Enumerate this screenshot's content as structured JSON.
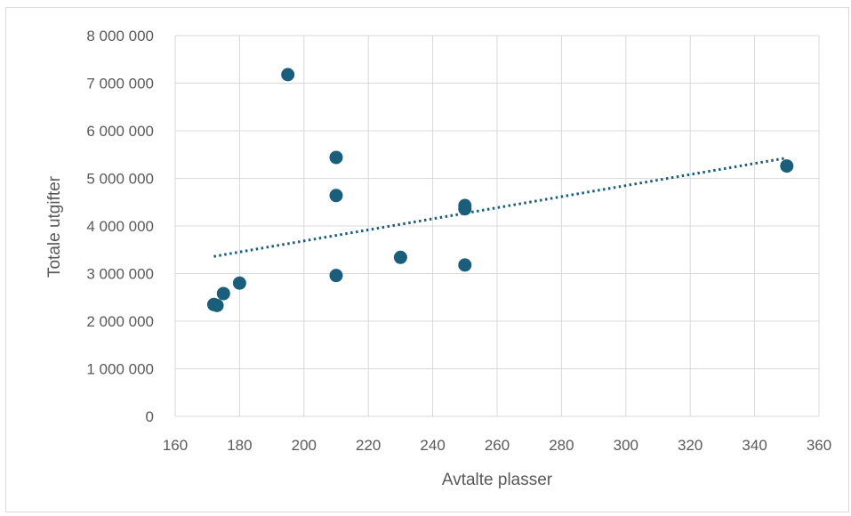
{
  "chart_data": {
    "type": "scatter",
    "title": "",
    "xlabel": "Avtalte plasser",
    "ylabel": "Totale utgifter",
    "xlim": [
      160,
      360
    ],
    "ylim": [
      0,
      8000000
    ],
    "x_ticks": [
      160,
      180,
      200,
      220,
      240,
      260,
      280,
      300,
      320,
      340,
      360
    ],
    "y_ticks": [
      0,
      1000000,
      2000000,
      3000000,
      4000000,
      5000000,
      6000000,
      7000000,
      8000000
    ],
    "x_tick_labels": [
      "160",
      "180",
      "200",
      "220",
      "240",
      "260",
      "280",
      "300",
      "320",
      "340",
      "360"
    ],
    "y_tick_labels": [
      "0",
      "1 000 000",
      "2 000 000",
      "3 000 000",
      "4 000 000",
      "5 000 000",
      "6 000 000",
      "7 000 000",
      "8 000 000"
    ],
    "grid": true,
    "legend": "none",
    "marker_color": "#1b5e7b",
    "trendline": {
      "style": "dotted",
      "color": "#1b5e7b",
      "from": {
        "x": 172,
        "y": 3360000
      },
      "to": {
        "x": 350,
        "y": 5430000
      }
    },
    "series": [
      {
        "points": [
          {
            "x": 172,
            "y": 2350000
          },
          {
            "x": 173,
            "y": 2330000
          },
          {
            "x": 175,
            "y": 2580000
          },
          {
            "x": 180,
            "y": 2800000
          },
          {
            "x": 195,
            "y": 7180000
          },
          {
            "x": 210,
            "y": 5440000
          },
          {
            "x": 210,
            "y": 4640000
          },
          {
            "x": 210,
            "y": 2960000
          },
          {
            "x": 230,
            "y": 3340000
          },
          {
            "x": 250,
            "y": 4430000
          },
          {
            "x": 250,
            "y": 4360000
          },
          {
            "x": 250,
            "y": 3180000
          },
          {
            "x": 350,
            "y": 5260000
          }
        ]
      }
    ]
  }
}
